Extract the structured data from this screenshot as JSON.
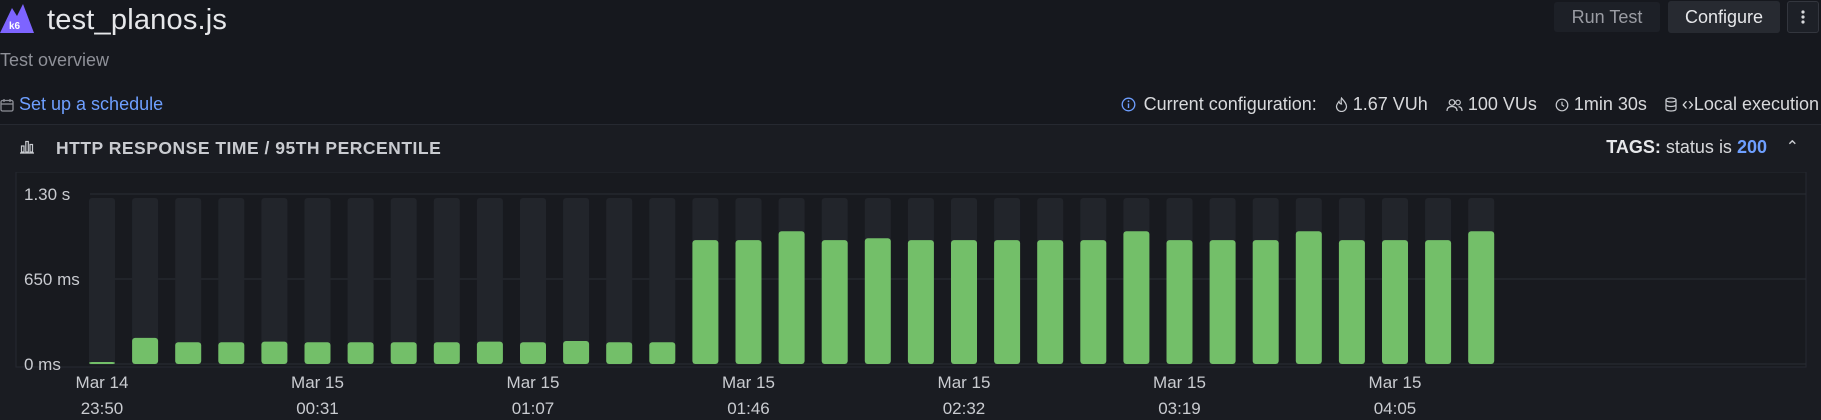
{
  "header": {
    "title": "test_planos.js",
    "logo_label": "k6",
    "run_test_label": "Run Test",
    "configure_label": "Configure",
    "more_icon": "kebab-menu-icon"
  },
  "subtitle": "Test overview",
  "schedule": {
    "label": "Set up a schedule",
    "icon": "calendar-icon"
  },
  "configuration": {
    "label": "Current configuration:",
    "vuh": "1.67 VUh",
    "vus": "100 VUs",
    "duration": "1min 30s",
    "execution": "‹›Local execution"
  },
  "panel": {
    "title": "HTTP RESPONSE TIME / 95TH PERCENTILE",
    "tags_label": "TAGS:",
    "tag_key": "status",
    "tag_op": "is",
    "tag_value": "200"
  },
  "colors": {
    "bar": "#73bf69",
    "bar_bg": "#22252b",
    "accent": "#6e9fff",
    "logo": "#7d64ff"
  },
  "chart_data": {
    "type": "bar",
    "ylabel": "",
    "ylim": [
      0,
      1300
    ],
    "y_unit": "ms",
    "y_ticks": [
      {
        "value": 0,
        "label": "0 ms"
      },
      {
        "value": 650,
        "label": "650 ms"
      },
      {
        "value": 1300,
        "label": "1.30 s"
      }
    ],
    "x_ticks": [
      {
        "bar_index": 0,
        "date": "Mar 14",
        "time": "23:50"
      },
      {
        "bar_index": 5,
        "date": "Mar 15",
        "time": "00:31"
      },
      {
        "bar_index": 10,
        "date": "Mar 15",
        "time": "01:07"
      },
      {
        "bar_index": 15,
        "date": "Mar 15",
        "time": "01:46"
      },
      {
        "bar_index": 20,
        "date": "Mar 15",
        "time": "02:32"
      },
      {
        "bar_index": 25,
        "date": "Mar 15",
        "time": "03:19"
      },
      {
        "bar_index": 30,
        "date": "Mar 15",
        "time": "04:05"
      }
    ],
    "series": [
      {
        "values": [
          12,
          205,
          170,
          170,
          175,
          170,
          170,
          170,
          170,
          175,
          170,
          180,
          170,
          170,
          970,
          970,
          1040,
          970,
          985,
          970,
          970,
          970,
          970,
          970,
          1040,
          970,
          970,
          970,
          1040,
          970,
          970,
          970,
          1040
        ]
      }
    ]
  }
}
